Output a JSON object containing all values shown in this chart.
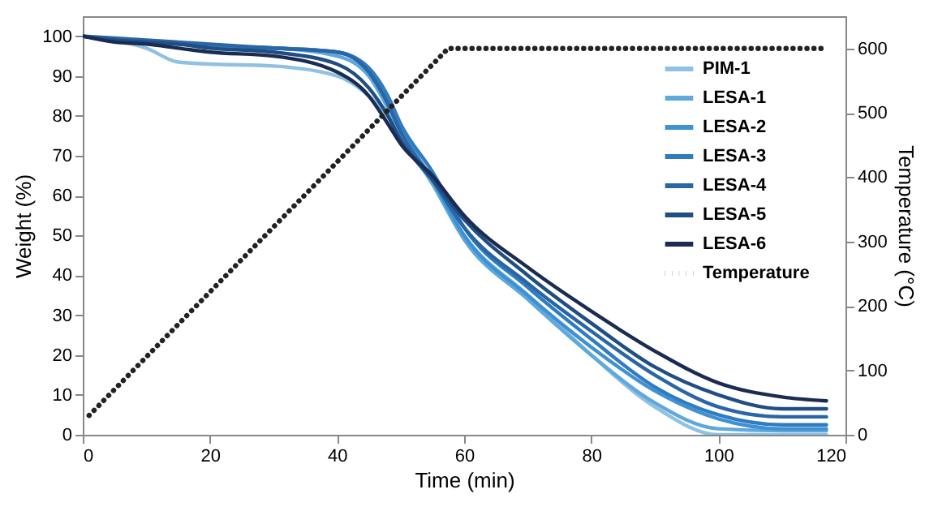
{
  "chart_data": {
    "type": "line",
    "xlabel": "Time (min)",
    "ylabel": "Weight (%)",
    "y2label": "Temperature (°C)",
    "x": [
      0,
      5,
      10,
      15,
      20,
      30,
      40,
      45,
      48,
      50,
      55,
      60,
      70,
      80,
      90,
      100,
      110,
      117
    ],
    "xlim": [
      0,
      120
    ],
    "xticks": [
      0,
      20,
      40,
      60,
      80,
      100,
      120
    ],
    "ylim": [
      0,
      105
    ],
    "yticks": [
      0,
      10,
      20,
      30,
      40,
      50,
      60,
      70,
      80,
      90,
      100
    ],
    "y2lim": [
      0,
      650
    ],
    "y2ticks": [
      0,
      100,
      200,
      300,
      400,
      500,
      600
    ],
    "legend": "top right",
    "grid": false,
    "series": [
      {
        "name": "PIM-1",
        "color": "#8fc1e3",
        "values": [
          100,
          99,
          97,
          93.5,
          93,
          92.5,
          90,
          85,
          80,
          75,
          63,
          50,
          35,
          20,
          7,
          0,
          0,
          0
        ]
      },
      {
        "name": "LESA-1",
        "color": "#5ea8dd",
        "values": [
          100,
          99,
          98.5,
          98,
          97.5,
          97,
          95,
          90,
          82,
          76,
          63,
          49,
          34,
          20,
          8,
          1.5,
          1,
          1
        ]
      },
      {
        "name": "LESA-2",
        "color": "#3f91d2",
        "values": [
          100,
          99,
          98.5,
          98,
          97.5,
          97,
          96,
          92,
          84,
          77,
          64,
          50,
          35,
          22,
          11,
          4,
          1.5,
          1.5
        ]
      },
      {
        "name": "LESA-3",
        "color": "#2f7cc2",
        "values": [
          100,
          99,
          98.5,
          98,
          97.5,
          97,
          96,
          92,
          85,
          78,
          66,
          52,
          37,
          24,
          12,
          5,
          2.5,
          2.5
        ]
      },
      {
        "name": "LESA-4",
        "color": "#2a66a6",
        "values": [
          100,
          99.5,
          99,
          98.5,
          98,
          97,
          96,
          91,
          83,
          76,
          64,
          52,
          38,
          26,
          15,
          7,
          4.5,
          4.5
        ]
      },
      {
        "name": "LESA-5",
        "color": "#1f4e85",
        "values": [
          100,
          99,
          98.5,
          98,
          97,
          96,
          93,
          87,
          80,
          74,
          64,
          54,
          40,
          28,
          17,
          10,
          6.5,
          6.5
        ]
      },
      {
        "name": "LESA-6",
        "color": "#1b2c52",
        "values": [
          100,
          98.5,
          98,
          97,
          96,
          95,
          91,
          85,
          78,
          73,
          65,
          55,
          42,
          31,
          21,
          13,
          9.5,
          8.5
        ]
      },
      {
        "name": "Temperature",
        "color": "#222222",
        "axis": "y2",
        "line_style": "dotted",
        "x": [
          1,
          57.5,
          117
        ],
        "values": [
          30,
          600,
          600
        ]
      }
    ]
  }
}
